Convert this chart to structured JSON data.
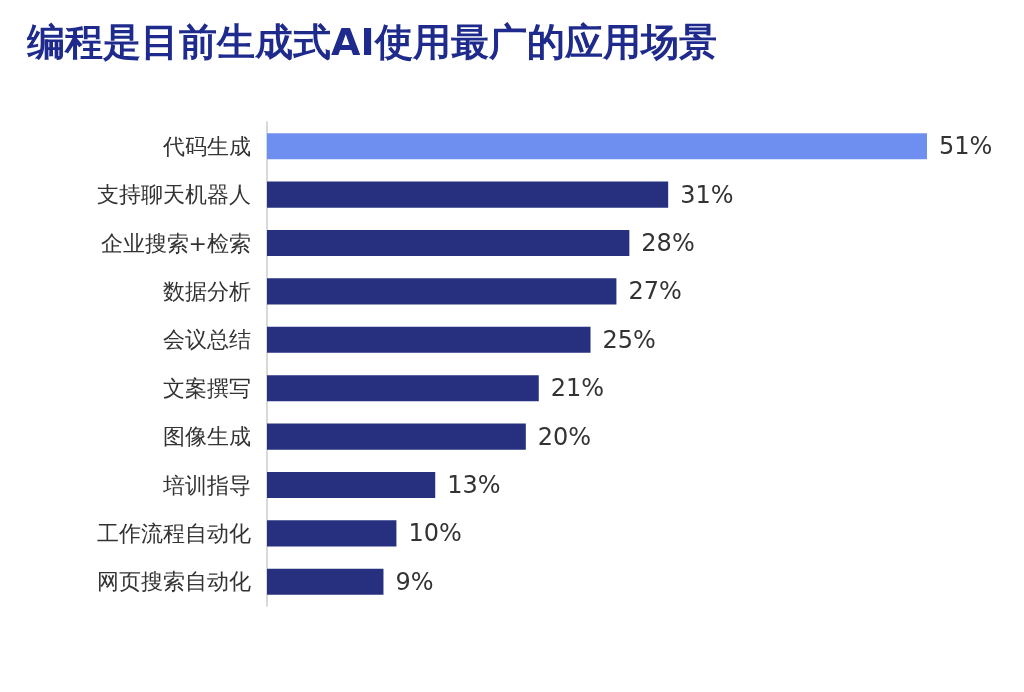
{
  "chart_data": {
    "type": "bar",
    "orientation": "horizontal",
    "title": "编程是目前生成式AI使用最广的应用场景",
    "categories": [
      "代码生成",
      "支持聊天机器人",
      "企业搜索+检索",
      "数据分析",
      "会议总结",
      "文案撰写",
      "图像生成",
      "培训指导",
      "工作流程自动化",
      "网页搜索自动化"
    ],
    "values": [
      51,
      31,
      28,
      27,
      25,
      21,
      20,
      13,
      10,
      9
    ],
    "colors": [
      "#6f8ff0",
      "#26307f",
      "#26307f",
      "#26307f",
      "#26307f",
      "#26307f",
      "#26307f",
      "#26307f",
      "#26307f",
      "#26307f"
    ],
    "value_labels": [
      "51%",
      "31%",
      "28%",
      "27%",
      "25%",
      "21%",
      "20%",
      "13%",
      "10%",
      "9%"
    ]
  }
}
